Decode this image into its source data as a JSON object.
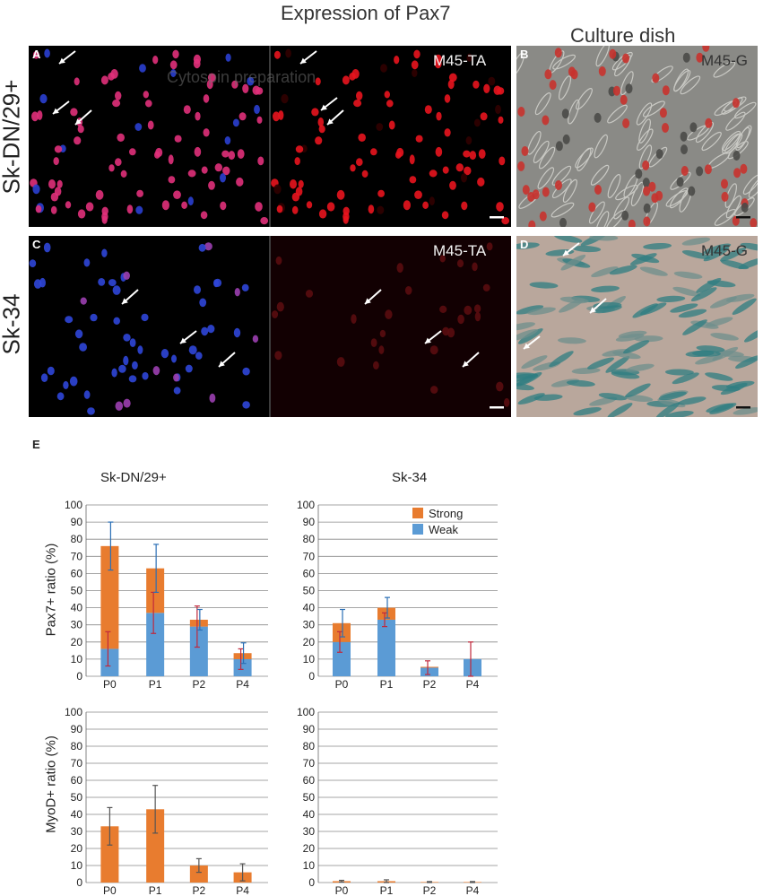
{
  "figure": {
    "title": "Expression of Pax7",
    "culture_title": "Culture dish",
    "row_labels": [
      "Sk-DN/29+",
      "Sk-34"
    ],
    "panel_labels": {
      "a": "A",
      "b": "B",
      "c": "C",
      "d": "D",
      "e": "E"
    },
    "panel_tags": {
      "a": "M45-TA",
      "b": "M45-G",
      "c": "M45-TA",
      "d": "M45-G"
    },
    "watermark": "Cytospin preparation"
  },
  "colors": {
    "strong": "#e87c2f",
    "weak": "#5b9bd5",
    "err_red": "#c0283c",
    "err_blue": "#2a6fb5",
    "err_gray": "#555555"
  },
  "chart_data": [
    {
      "type": "bar",
      "stacked": true,
      "title": "Sk-DN/29+",
      "ylabel": "Pax7+ ratio (%)",
      "ylim": [
        0,
        100
      ],
      "yticks": [
        0,
        10,
        20,
        30,
        40,
        50,
        60,
        70,
        80,
        90,
        100
      ],
      "grid": true,
      "categories": [
        "P0",
        "P1",
        "P2",
        "P4"
      ],
      "series": [
        {
          "name": "Weak",
          "values": [
            16,
            37,
            29,
            10
          ],
          "err": [
            10,
            12,
            12,
            6
          ]
        },
        {
          "name": "Strong",
          "values": [
            60,
            26,
            4,
            3.5
          ],
          "err": [
            14,
            14,
            6,
            6
          ]
        }
      ]
    },
    {
      "type": "bar",
      "stacked": true,
      "title": "Sk-34",
      "ylim": [
        0,
        100
      ],
      "yticks": [
        0,
        10,
        20,
        30,
        40,
        50,
        60,
        70,
        80,
        90,
        100
      ],
      "grid": true,
      "legend": [
        "Strong",
        "Weak"
      ],
      "legend_position": "top-right",
      "categories": [
        "P0",
        "P1",
        "P2",
        "P4"
      ],
      "series": [
        {
          "name": "Weak",
          "values": [
            20,
            33,
            5,
            10
          ],
          "err": [
            6,
            4,
            4,
            10
          ]
        },
        {
          "name": "Strong",
          "values": [
            11,
            7,
            0.5,
            0
          ],
          "err": [
            8,
            6,
            0,
            0
          ]
        }
      ]
    },
    {
      "type": "bar",
      "title": "",
      "ylabel": "MyoD+ ratio (%)",
      "ylim": [
        0,
        100
      ],
      "yticks": [
        0,
        10,
        20,
        30,
        40,
        50,
        60,
        70,
        80,
        90,
        100
      ],
      "grid": true,
      "categories": [
        "P0",
        "P1",
        "P2",
        "P4"
      ],
      "series": [
        {
          "name": "Strong",
          "values": [
            33,
            43,
            10,
            6
          ],
          "err": [
            11,
            14,
            4,
            5
          ]
        }
      ]
    },
    {
      "type": "bar",
      "title": "",
      "ylim": [
        0,
        100
      ],
      "yticks": [
        0,
        10,
        20,
        30,
        40,
        50,
        60,
        70,
        80,
        90,
        100
      ],
      "grid": true,
      "categories": [
        "P0",
        "P1",
        "P2",
        "P4"
      ],
      "series": [
        {
          "name": "Strong",
          "values": [
            0.8,
            0.8,
            0.3,
            0.3
          ],
          "err": [
            0.5,
            0.8,
            0.3,
            0.3
          ]
        }
      ]
    }
  ]
}
